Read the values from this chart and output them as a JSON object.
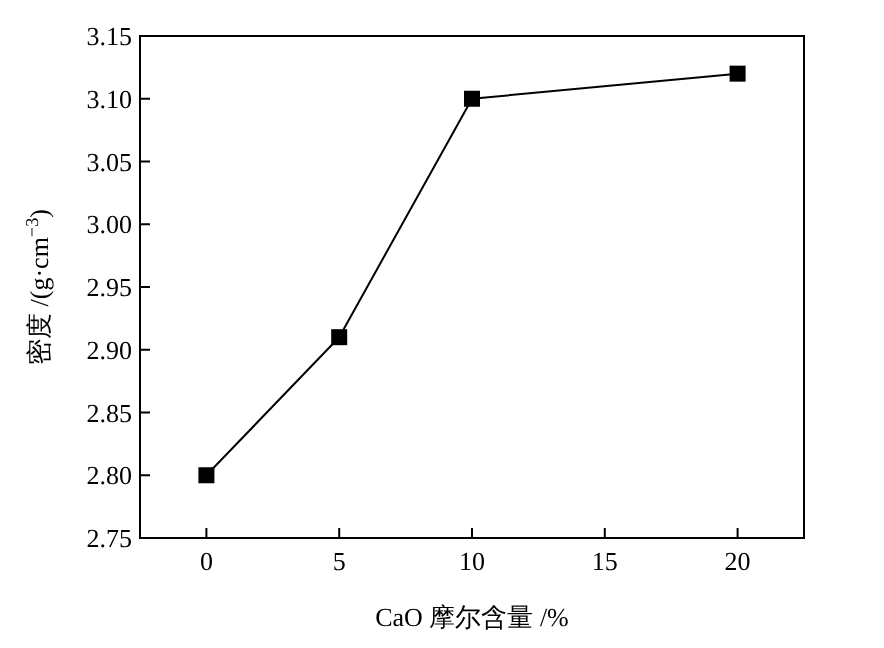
{
  "chart_data": {
    "type": "line",
    "xlabel": "CaO 摩尔含量 /%",
    "ylabel": "密度 /(g·cm$^{−3}$)",
    "x": [
      0,
      5,
      10,
      20
    ],
    "series": [
      {
        "color": "#000000",
        "values": [
          2.8,
          2.91,
          3.1,
          3.12
        ]
      }
    ],
    "marker": "square",
    "line_style": "solid",
    "grid": false,
    "xlim": [
      -2.5,
      22.5
    ],
    "xticks": [
      0,
      5,
      10,
      15,
      20
    ],
    "ylim": [
      2.75,
      3.15
    ],
    "yticks": [
      {
        "value": 2.75,
        "label": "2.75"
      },
      {
        "value": 2.8,
        "label": "2.80"
      },
      {
        "value": 2.85,
        "label": "2.85"
      },
      {
        "value": 2.9,
        "label": "2.90"
      },
      {
        "value": 2.95,
        "label": "2.95"
      },
      {
        "value": 3.0,
        "label": "3.00"
      },
      {
        "value": 3.05,
        "label": "3.05"
      },
      {
        "value": 3.1,
        "label": "3.10"
      },
      {
        "value": 3.15,
        "label": "3.15"
      }
    ]
  }
}
